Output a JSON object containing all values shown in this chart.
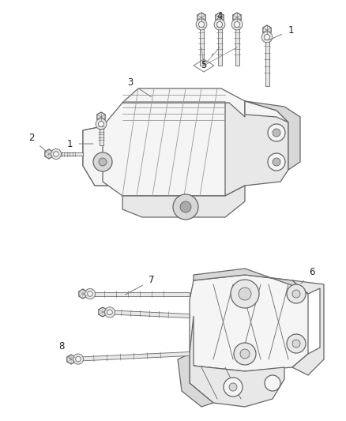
{
  "bg_color": "#ffffff",
  "line_color": "#666666",
  "light_line_color": "#999999",
  "fill_light": "#f5f5f5",
  "fill_mid": "#e8e8e8",
  "fill_dark": "#d8d8d8",
  "label_color": "#222222",
  "fig_width": 4.38,
  "fig_height": 5.33,
  "dpi": 100,
  "label_fontsize": 8.5
}
